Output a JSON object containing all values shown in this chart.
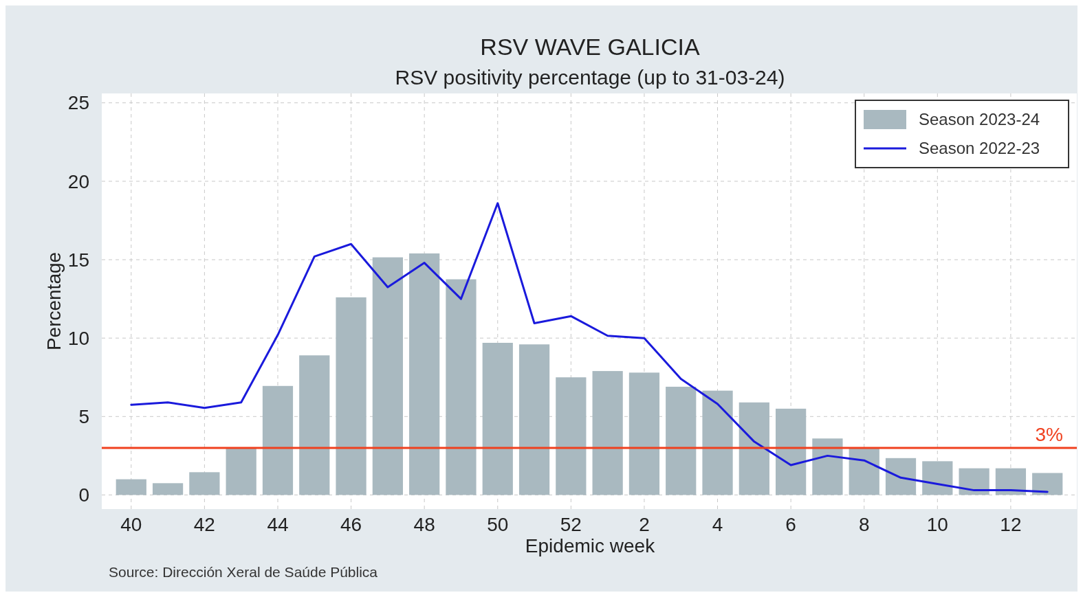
{
  "chart_data": {
    "type": "bar",
    "title": "RSV WAVE GALICIA",
    "subtitle": "RSV positivity percentage (up to 31-03-24)",
    "xlabel": "Epidemic week",
    "ylabel": "Percentage",
    "categories": [
      "40",
      null,
      "42",
      null,
      "44",
      null,
      "46",
      null,
      "48",
      null,
      "50",
      null,
      "52",
      null,
      "2",
      null,
      "4",
      null,
      "6",
      null,
      "8",
      null,
      "10",
      null,
      "12",
      null
    ],
    "series": [
      {
        "name": "Season 2023-24",
        "color": "#a9b9c0",
        "values": [
          1.0,
          0.75,
          1.45,
          3.0,
          6.95,
          8.9,
          12.6,
          15.15,
          15.4,
          13.75,
          9.7,
          9.6,
          7.5,
          7.9,
          7.8,
          6.9,
          6.65,
          5.9,
          5.5,
          3.6,
          3.0,
          2.35,
          2.15,
          1.7,
          1.7,
          1.4
        ]
      },
      {
        "name": "Season 2022-23",
        "type": "line",
        "color": "#1a1adc",
        "values": [
          5.75,
          5.9,
          5.55,
          5.9,
          10.2,
          15.2,
          16.0,
          13.25,
          14.8,
          12.5,
          18.6,
          10.95,
          11.4,
          10.15,
          10.0,
          7.4,
          5.8,
          3.4,
          1.9,
          2.5,
          2.2,
          1.1,
          0.7,
          0.3,
          0.3,
          0.2
        ]
      }
    ],
    "ylim": [
      -0.9,
      25.6
    ],
    "yticks": [
      0,
      5,
      10,
      15,
      20,
      25
    ],
    "grid": true,
    "legend": "top right",
    "ref_lines": [
      {
        "axis": "y",
        "value": 3,
        "label": "3%",
        "color": "#f0401e"
      }
    ],
    "annotations": [
      "Source: Dirección Xeral de Saúde Pública"
    ]
  }
}
